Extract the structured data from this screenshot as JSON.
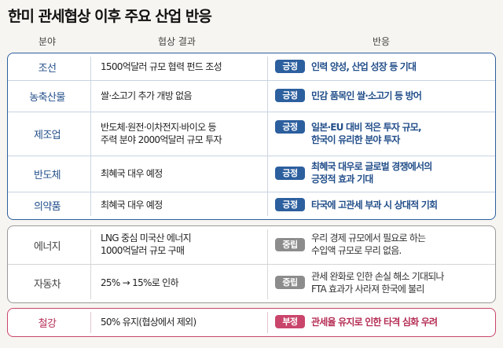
{
  "title": "한미 관세협상 이후 주요 산업 반응",
  "headers": {
    "sector": "분야",
    "result": "협상 결과",
    "reaction": "반응"
  },
  "badges": {
    "positive": "긍정",
    "neutral": "중립",
    "negative": "부정"
  },
  "colors": {
    "positive": "#2c5f9e",
    "neutral": "#8c8c8c",
    "negative": "#c9456b"
  },
  "rows": [
    {
      "sector": "조선",
      "result": [
        "1500억달러 규모 협력 펀드 조성"
      ],
      "stance": "긍정",
      "reaction": [
        "인력 양성, 산업 성장 등 기대"
      ]
    },
    {
      "sector": "농축산물",
      "result": [
        "쌀·소고기 추가 개방 없음"
      ],
      "stance": "긍정",
      "reaction": [
        "민감 품목인 쌀·소고기 등 방어"
      ]
    },
    {
      "sector": "제조업",
      "result": [
        "반도체·원전·이차전지·바이오 등",
        "주력 분야 2000억달러 규모 투자"
      ],
      "stance": "긍정",
      "reaction": [
        "일본·EU 대비 적은 투자 규모,",
        "한국이 유리한 분야 투자"
      ]
    },
    {
      "sector": "반도체",
      "result": [
        "최혜국 대우 예정"
      ],
      "stance": "긍정",
      "reaction": [
        "최혜국 대우로 글로벌 경쟁에서의",
        "긍정적 효과 기대"
      ]
    },
    {
      "sector": "의약품",
      "result": [
        "최혜국 대우 예정"
      ],
      "stance": "긍정",
      "reaction": [
        "타국에 고관세 부과 시 상대적 기회"
      ]
    },
    {
      "sector": "에너지",
      "result": [
        "LNG 중심 미국산 에너지",
        "1000억달러 규모 구매"
      ],
      "stance": "중립",
      "reaction": [
        "우리 경제 규모에서 필요로 하는",
        "수입액 규모로 무리 없음."
      ]
    },
    {
      "sector": "자동차",
      "result": [
        "25% → 15%로 인하"
      ],
      "stance": "중립",
      "reaction": [
        "관세 완화로 인한 손실 해소 기대되나",
        "FTA 효과가 사라져 한국에 불리"
      ]
    },
    {
      "sector": "철강",
      "result": [
        "50% 유지(협상에서 제외)"
      ],
      "stance": "부정",
      "reaction": [
        "관세율 유지로 인한 타격 심화 우려"
      ]
    }
  ]
}
